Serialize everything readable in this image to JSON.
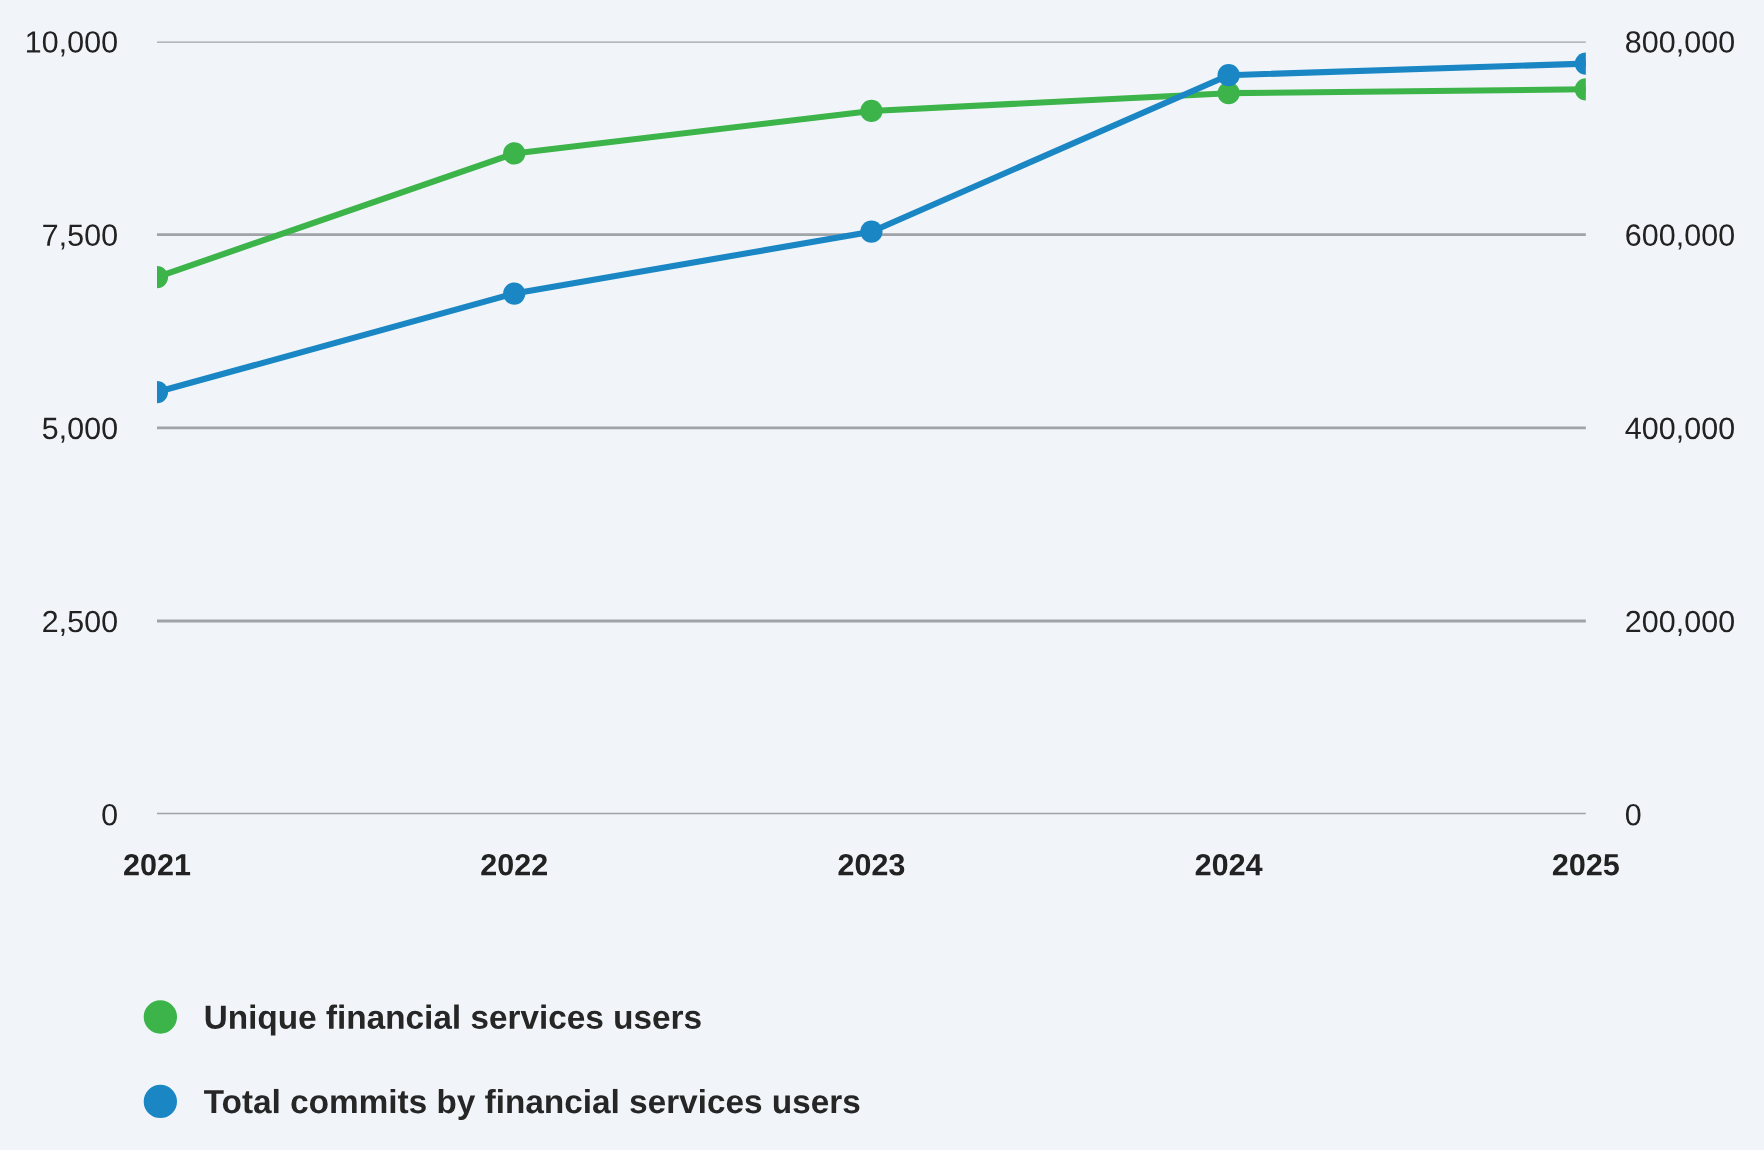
{
  "chart_data": {
    "type": "line",
    "x": [
      2021,
      2022,
      2023,
      2024,
      2025
    ],
    "xlim": [
      2021,
      2025
    ],
    "xticks": [
      2021,
      2022,
      2023,
      2024,
      2025
    ],
    "ylim": [
      0,
      10000
    ],
    "yticks": [
      {
        "value": 0,
        "label": "0"
      },
      {
        "value": 2500,
        "label": "2,500"
      },
      {
        "value": 5000,
        "label": "5,000"
      },
      {
        "value": 7500,
        "label": "7,500"
      },
      {
        "value": 10000,
        "label": "10,000"
      }
    ],
    "y2lim": [
      0,
      800000
    ],
    "y2ticks": [
      {
        "value": 0,
        "label": "0"
      },
      {
        "value": 200000,
        "label": "200,000"
      },
      {
        "value": 400000,
        "label": "400,000"
      },
      {
        "value": 600000,
        "label": "600,000"
      },
      {
        "value": 800000,
        "label": "800,000"
      }
    ],
    "series": [
      {
        "name": "Unique financial services users",
        "color": "#3cb44a",
        "values": [
          6950,
          8550,
          9100,
          9330,
          9380
        ]
      },
      {
        "name": "Total commits by financial services users",
        "color": "#1a87c4",
        "axis": "y2",
        "values": [
          437000,
          539000,
          603000,
          765000,
          777000
        ]
      }
    ],
    "grid": "y",
    "legend": "bottom",
    "marker": "circle",
    "line_style": "solid"
  }
}
